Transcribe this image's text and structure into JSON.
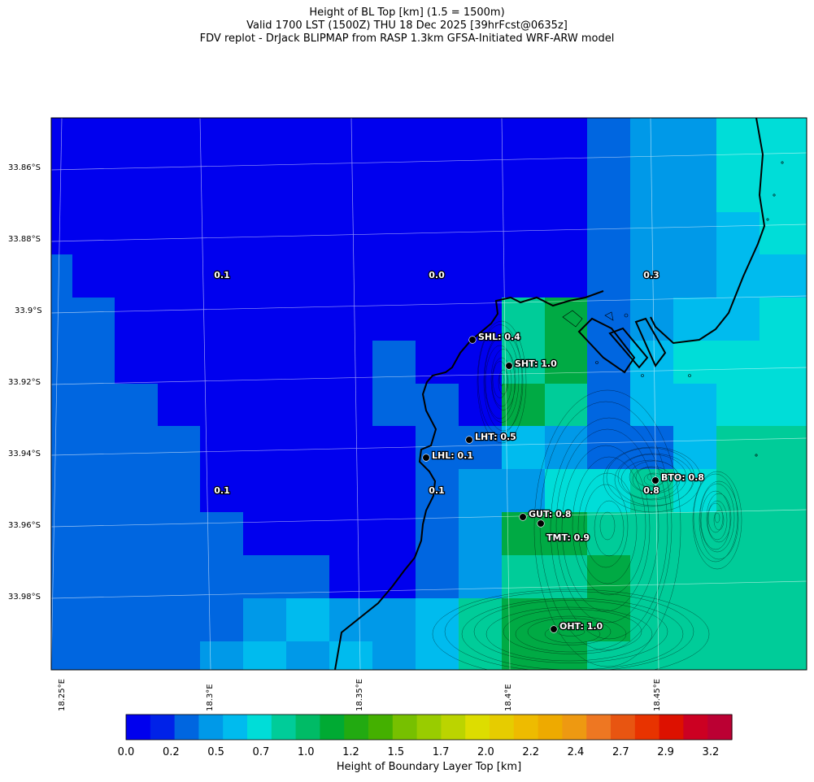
{
  "titles": {
    "line1": "Height of BL Top [km] (1.5 = 1500m)",
    "line2": "Valid 1700 LST (1500Z) THU 18 Dec 2025 [39hrFcst@0635z]",
    "line3": "FDV replot - DrJack BLIPMAP from RASP 1.3km GFSA-Initiated WRF-ARW model"
  },
  "lat_labels": [
    "33.86°S",
    "33.88°S",
    "33.9°S",
    "33.92°S",
    "33.94°S",
    "33.96°S",
    "33.98°S"
  ],
  "lon_labels": [
    "18.25°E",
    "18.3°E",
    "18.35°E",
    "18.4°E",
    "18.45°E"
  ],
  "region_values": [
    {
      "text": "0.1"
    },
    {
      "text": "0.0"
    },
    {
      "text": "0.3"
    },
    {
      "text": "0.1"
    },
    {
      "text": "0.1"
    },
    {
      "text": "0.8"
    }
  ],
  "stations": [
    {
      "code": "SHL",
      "label": "SHL: 0.4",
      "value": 0.4
    },
    {
      "code": "SHT",
      "label": "SHT: 1.0",
      "value": 1.0
    },
    {
      "code": "LHT",
      "label": "LHT: 0.5",
      "value": 0.5
    },
    {
      "code": "LHL",
      "label": "LHL: 0.1",
      "value": 0.1
    },
    {
      "code": "BTO",
      "label": "BTO: 0.8",
      "value": 0.8
    },
    {
      "code": "GUT",
      "label": "GUT: 0.8",
      "value": 0.8
    },
    {
      "code": "TMT",
      "label": "TMT: 0.9",
      "value": 0.9
    },
    {
      "code": "OHT",
      "label": "OHT: 1.0",
      "value": 1.0
    }
  ],
  "colorbar": {
    "title": "Height of Boundary Layer Top [km]",
    "tick_labels": [
      "0.0",
      "0.2",
      "0.5",
      "0.7",
      "1.0",
      "1.2",
      "1.5",
      "1.7",
      "2.0",
      "2.2",
      "2.4",
      "2.7",
      "2.9",
      "3.2"
    ],
    "colors": [
      "#0000ee",
      "#0022e8",
      "#0066e0",
      "#0099e8",
      "#00bbee",
      "#00ddd8",
      "#00cc99",
      "#00bb66",
      "#00aa33",
      "#22aa11",
      "#44b000",
      "#77c000",
      "#99cc00",
      "#bbd400",
      "#dddd00",
      "#e6cc00",
      "#eebb00",
      "#eeaa00",
      "#ee9911",
      "#ee7722",
      "#e85511",
      "#e83300",
      "#dd1100",
      "#cc0022",
      "#bb0033"
    ]
  }
}
